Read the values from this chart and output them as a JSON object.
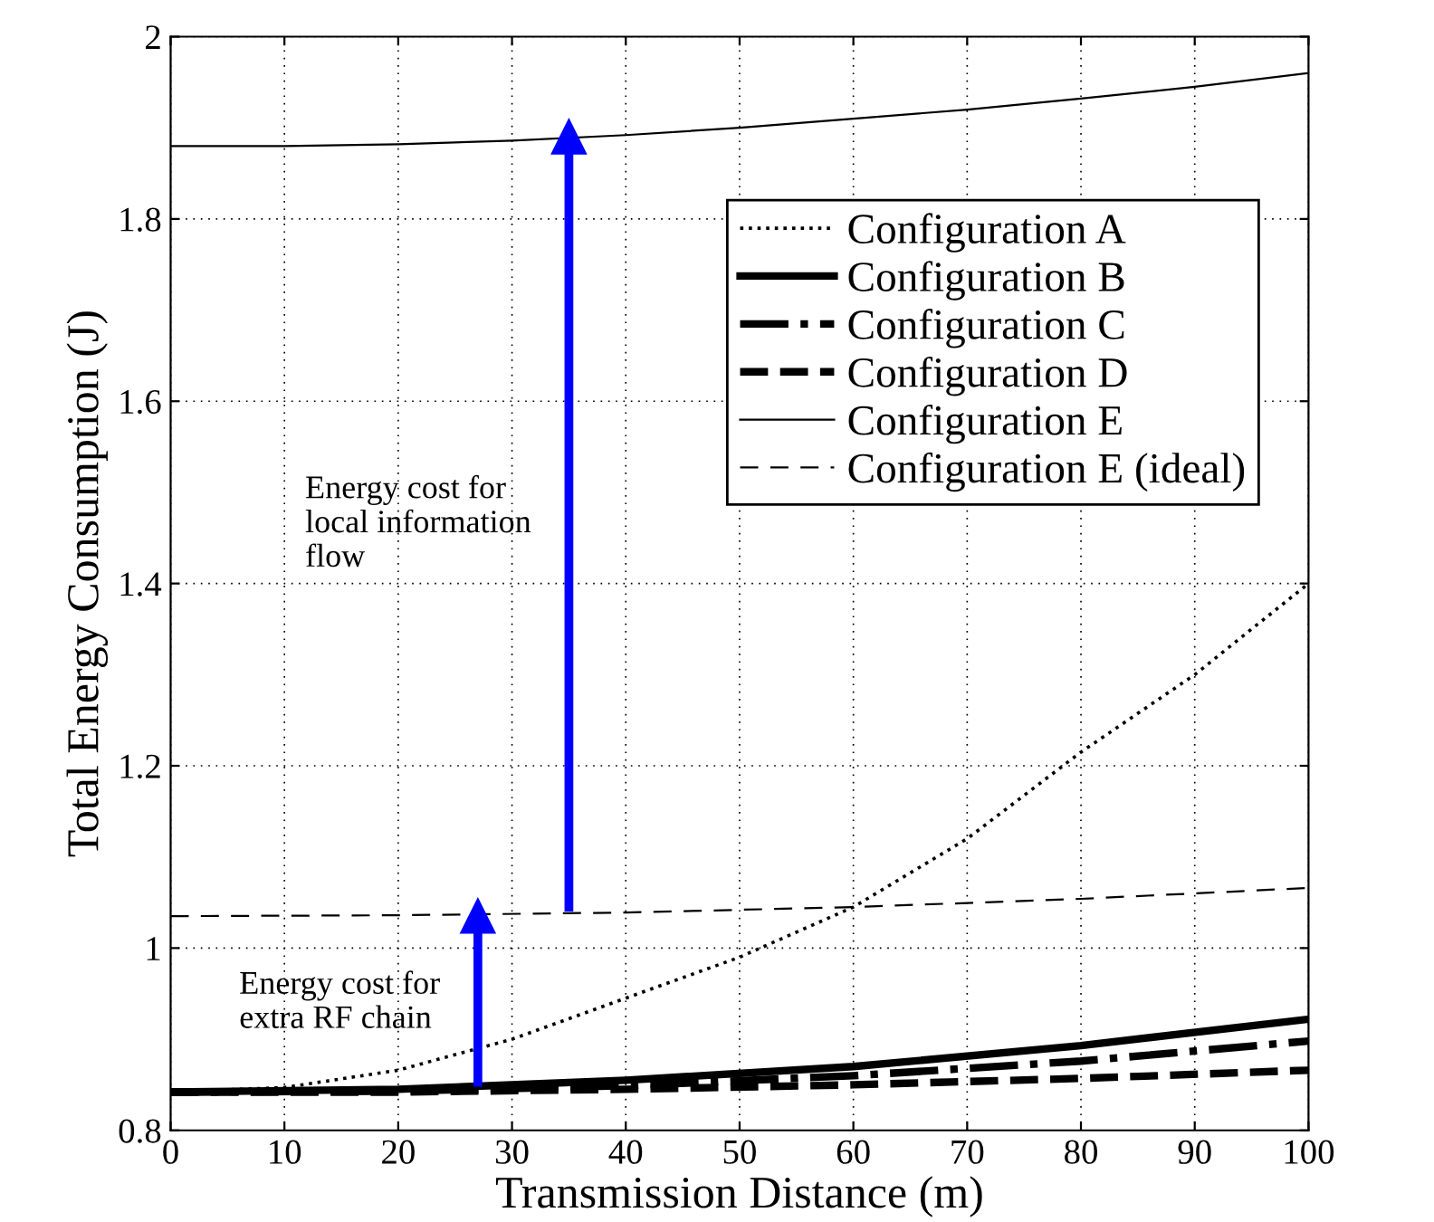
{
  "chart_data": {
    "type": "line",
    "xlabel": "Transmission Distance (m)",
    "ylabel": "Total Energy Consumption (J)",
    "xlim": [
      0,
      100
    ],
    "ylim": [
      0.8,
      2
    ],
    "xticks": [
      0,
      10,
      20,
      30,
      40,
      50,
      60,
      70,
      80,
      90,
      100
    ],
    "yticks": [
      0.8,
      1,
      1.2,
      1.4,
      1.6,
      1.8,
      2
    ],
    "grid": true,
    "legend": "top right",
    "series": [
      {
        "name": "Configuration A",
        "color": "#000000",
        "line_style": "dotted",
        "x": [
          0,
          10,
          20,
          30,
          40,
          50,
          60,
          70,
          80,
          90,
          100
        ],
        "values": [
          0.842,
          0.847,
          0.866,
          0.9,
          0.945,
          0.99,
          1.045,
          1.12,
          1.215,
          1.3,
          1.4
        ]
      },
      {
        "name": "Configuration B",
        "color": "#000000",
        "line_style": "solid",
        "x": [
          0,
          20,
          40,
          60,
          80,
          100
        ],
        "values": [
          0.842,
          0.845,
          0.855,
          0.87,
          0.893,
          0.922
        ]
      },
      {
        "name": "Configuration C",
        "color": "#000000",
        "line_style": "dashdot",
        "x": [
          0,
          20,
          40,
          60,
          80,
          100
        ],
        "values": [
          0.842,
          0.843,
          0.849,
          0.86,
          0.876,
          0.898
        ]
      },
      {
        "name": "Configuration D",
        "color": "#000000",
        "line_style": "dashed",
        "x": [
          0,
          20,
          40,
          60,
          80,
          100
        ],
        "values": [
          0.842,
          0.842,
          0.845,
          0.85,
          0.857,
          0.866
        ]
      },
      {
        "name": "Configuration E",
        "color": "#000000",
        "line_style": "solid",
        "x": [
          0,
          10,
          20,
          30,
          40,
          50,
          60,
          70,
          80,
          90,
          100
        ],
        "values": [
          1.88,
          1.88,
          1.882,
          1.886,
          1.892,
          1.9,
          1.91,
          1.92,
          1.932,
          1.945,
          1.96
        ]
      },
      {
        "name": "Configuration E (ideal)",
        "color": "#000000",
        "line_style": "dashed",
        "x": [
          0,
          20,
          40,
          60,
          80,
          100
        ],
        "values": [
          1.035,
          1.036,
          1.039,
          1.045,
          1.054,
          1.066
        ]
      },
      {
        "type": "line",
        "color": "#0000ff",
        "marker": "triangle",
        "x": [
          27,
          27
        ],
        "values": [
          0.848,
          1.035
        ]
      },
      {
        "type": "line",
        "color": "#0000ff",
        "marker": "triangle",
        "x": [
          35,
          35
        ],
        "values": [
          1.04,
          1.89
        ]
      }
    ],
    "annotations": [
      {
        "text": "Energy cost for\nextra RF chain",
        "x": 27,
        "y": 0.94
      },
      {
        "text": "Energy cost for\nlocal information\nflow",
        "x": 35,
        "y": 1.465
      }
    ]
  }
}
